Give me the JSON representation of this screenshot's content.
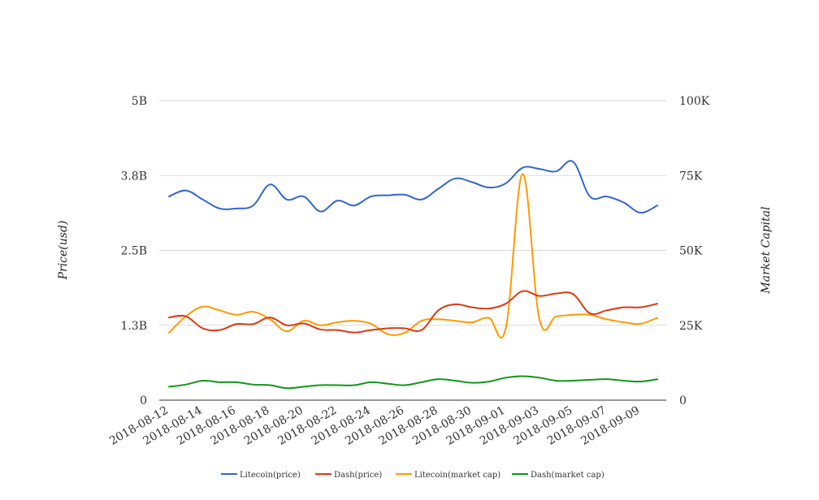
{
  "chart_data": {
    "type": "line",
    "title": "",
    "y_left_label": "Price(usd)",
    "y_right_label": "Market Capital",
    "y_left_ticks": [
      "0",
      "1.3B",
      "2.5B",
      "3.8B",
      "5B"
    ],
    "y_right_ticks": [
      "0",
      "25K",
      "50K",
      "75K",
      "100K"
    ],
    "y_left_range": [
      0,
      5000000000
    ],
    "y_right_range": [
      0,
      100000
    ],
    "grid": true,
    "legend_position": "bottom",
    "x_tick_labels": [
      "2018-08-12",
      "2018-08-14",
      "2018-08-16",
      "2018-08-18",
      "2018-08-20",
      "2018-08-22",
      "2018-08-24",
      "2018-08-26",
      "2018-08-28",
      "2018-08-30",
      "2018-09-01",
      "2018-09-03",
      "2018-09-05",
      "2018-09-07",
      "2018-09-09"
    ],
    "x": [
      "2018-08-12",
      "2018-08-13",
      "2018-08-14",
      "2018-08-15",
      "2018-08-16",
      "2018-08-17",
      "2018-08-18",
      "2018-08-19",
      "2018-08-20",
      "2018-08-21",
      "2018-08-22",
      "2018-08-23",
      "2018-08-24",
      "2018-08-25",
      "2018-08-26",
      "2018-08-27",
      "2018-08-28",
      "2018-08-29",
      "2018-08-30",
      "2018-08-31",
      "2018-09-01",
      "2018-09-02",
      "2018-09-03",
      "2018-09-04",
      "2018-09-05",
      "2018-09-06",
      "2018-09-07",
      "2018-09-08",
      "2018-09-09",
      "2018-09-10"
    ],
    "series": [
      {
        "name": "Litecoin(price)",
        "color": "#3366cc",
        "axis": "left",
        "values": [
          3400000000,
          3500000000,
          3350000000,
          3200000000,
          3200000000,
          3250000000,
          3600000000,
          3350000000,
          3400000000,
          3150000000,
          3330000000,
          3250000000,
          3400000000,
          3420000000,
          3430000000,
          3350000000,
          3530000000,
          3700000000,
          3640000000,
          3550000000,
          3620000000,
          3880000000,
          3860000000,
          3820000000,
          3980000000,
          3400000000,
          3400000000,
          3300000000,
          3130000000,
          3250000000
        ]
      },
      {
        "name": "Dash(price)",
        "color": "#dc3912",
        "axis": "left",
        "values": [
          1380000000,
          1400000000,
          1200000000,
          1170000000,
          1270000000,
          1270000000,
          1380000000,
          1250000000,
          1280000000,
          1180000000,
          1170000000,
          1130000000,
          1170000000,
          1200000000,
          1200000000,
          1170000000,
          1500000000,
          1600000000,
          1550000000,
          1530000000,
          1610000000,
          1820000000,
          1740000000,
          1780000000,
          1770000000,
          1450000000,
          1500000000,
          1550000000,
          1550000000,
          1610000000
        ]
      },
      {
        "name": "Litecoin(market cap)",
        "color": "#ff9900",
        "axis": "right",
        "values": [
          22500,
          28000,
          31200,
          30000,
          28500,
          29500,
          27000,
          23000,
          26500,
          25000,
          26000,
          26500,
          25500,
          22000,
          22500,
          26500,
          27000,
          26500,
          26000,
          27500,
          24000,
          75500,
          27000,
          28000,
          28500,
          28500,
          27000,
          26000,
          25500,
          27500
        ]
      },
      {
        "name": "Dash(market cap)",
        "color": "#109618",
        "axis": "right",
        "values": [
          4500,
          5200,
          6500,
          6000,
          6000,
          5200,
          5000,
          4000,
          4500,
          5000,
          5000,
          5000,
          6000,
          5500,
          5000,
          6000,
          7000,
          6500,
          5800,
          6200,
          7500,
          8000,
          7500,
          6500,
          6500,
          6800,
          7000,
          6500,
          6200,
          7000
        ]
      }
    ]
  }
}
